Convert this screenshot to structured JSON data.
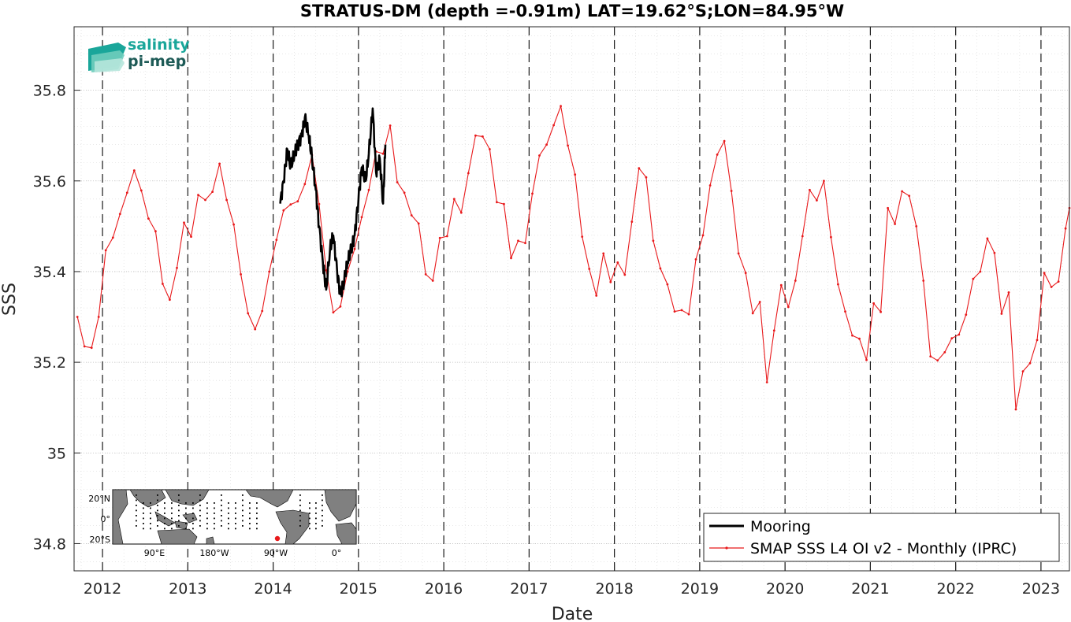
{
  "chart_data": {
    "type": "line",
    "title": "STRATUS-DM (depth =-0.91m) LAT=19.62°S;LON=84.95°W",
    "xlabel": "Date",
    "ylabel": "SSS",
    "xlim": [
      "2011-09",
      "2023-05"
    ],
    "ylim": [
      34.74,
      35.94
    ],
    "x_ticks": [
      "2012",
      "2013",
      "2014",
      "2015",
      "2016",
      "2017",
      "2018",
      "2019",
      "2020",
      "2021",
      "2022",
      "2023"
    ],
    "y_ticks": [
      34.8,
      35,
      35.2,
      35.4,
      35.6,
      35.8
    ],
    "y_tick_labels": [
      "34.8",
      "35",
      "35.2",
      "35.4",
      "35.6",
      "35.8"
    ],
    "grid": true,
    "year_markers": "dashed vertical lines at each year start",
    "legend_position": "bottom-right",
    "series": [
      {
        "name": "Mooring",
        "color": "#000000",
        "points": [
          [
            "2014-02-01",
            35.55
          ],
          [
            "2014-02-15",
            35.6
          ],
          [
            "2014-03-01",
            35.67
          ],
          [
            "2014-03-15",
            35.63
          ],
          [
            "2014-04-01",
            35.66
          ],
          [
            "2014-04-15",
            35.68
          ],
          [
            "2014-05-01",
            35.7
          ],
          [
            "2014-05-15",
            35.74
          ],
          [
            "2014-06-01",
            35.7
          ],
          [
            "2014-06-15",
            35.65
          ],
          [
            "2014-07-01",
            35.58
          ],
          [
            "2014-07-15",
            35.5
          ],
          [
            "2014-08-01",
            35.42
          ],
          [
            "2014-08-15",
            35.36
          ],
          [
            "2014-09-01",
            35.45
          ],
          [
            "2014-09-15",
            35.48
          ],
          [
            "2014-10-01",
            35.4
          ],
          [
            "2014-10-15",
            35.35
          ],
          [
            "2014-11-01",
            35.38
          ],
          [
            "2014-11-15",
            35.42
          ],
          [
            "2014-12-01",
            35.45
          ],
          [
            "2014-12-15",
            35.48
          ],
          [
            "2015-01-01",
            35.56
          ],
          [
            "2015-01-15",
            35.63
          ],
          [
            "2015-02-01",
            35.6
          ],
          [
            "2015-02-15",
            35.66
          ],
          [
            "2015-03-01",
            35.76
          ],
          [
            "2015-03-15",
            35.62
          ],
          [
            "2015-04-01",
            35.65
          ],
          [
            "2015-04-15",
            35.55
          ],
          [
            "2015-04-25",
            35.68
          ]
        ]
      },
      {
        "name": "SMAP SSS L4 OI v2 - Monthly (IPRC)",
        "color": "#e8191b",
        "points": [
          [
            "2011-09-15",
            35.3
          ],
          [
            "2011-10-15",
            35.235
          ],
          [
            "2011-11-15",
            35.232
          ],
          [
            "2011-12-15",
            35.3
          ],
          [
            "2012-01-15",
            35.447
          ],
          [
            "2012-02-15",
            35.475
          ],
          [
            "2012-03-15",
            35.527
          ],
          [
            "2012-04-15",
            35.574
          ],
          [
            "2012-05-15",
            35.623
          ],
          [
            "2012-06-15",
            35.579
          ],
          [
            "2012-07-15",
            35.517
          ],
          [
            "2012-08-15",
            35.489
          ],
          [
            "2012-09-15",
            35.373
          ],
          [
            "2012-10-15",
            35.338
          ],
          [
            "2012-11-15",
            35.408
          ],
          [
            "2012-12-15",
            35.508
          ],
          [
            "2013-01-15",
            35.477
          ],
          [
            "2013-02-15",
            35.569
          ],
          [
            "2013-03-15",
            35.558
          ],
          [
            "2013-04-15",
            35.576
          ],
          [
            "2013-05-15",
            35.638
          ],
          [
            "2013-06-15",
            35.558
          ],
          [
            "2013-07-15",
            35.504
          ],
          [
            "2013-08-15",
            35.394
          ],
          [
            "2013-09-15",
            35.308
          ],
          [
            "2013-10-15",
            35.273
          ],
          [
            "2013-11-15",
            35.313
          ],
          [
            "2013-12-15",
            35.4
          ],
          [
            "2014-01-15",
            35.47
          ],
          [
            "2014-02-15",
            35.535
          ],
          [
            "2014-03-15",
            35.548
          ],
          [
            "2014-04-15",
            35.555
          ],
          [
            "2014-05-15",
            35.593
          ],
          [
            "2014-06-15",
            35.657
          ],
          [
            "2014-07-15",
            35.549
          ],
          [
            "2014-08-15",
            35.403
          ],
          [
            "2014-09-15",
            35.31
          ],
          [
            "2014-10-15",
            35.323
          ],
          [
            "2014-11-15",
            35.4
          ],
          [
            "2014-12-15",
            35.45
          ],
          [
            "2015-01-15",
            35.52
          ],
          [
            "2015-02-15",
            35.58
          ],
          [
            "2015-03-15",
            35.665
          ],
          [
            "2015-04-15",
            35.66
          ],
          [
            "2015-05-15",
            35.722
          ],
          [
            "2015-06-15",
            35.597
          ],
          [
            "2015-07-15",
            35.574
          ],
          [
            "2015-08-15",
            35.524
          ],
          [
            "2015-09-15",
            35.506
          ],
          [
            "2015-10-15",
            35.394
          ],
          [
            "2015-11-15",
            35.38
          ],
          [
            "2015-12-15",
            35.474
          ],
          [
            "2016-01-15",
            35.478
          ],
          [
            "2016-02-15",
            35.56
          ],
          [
            "2016-03-15",
            35.53
          ],
          [
            "2016-04-15",
            35.617
          ],
          [
            "2016-05-15",
            35.7
          ],
          [
            "2016-06-15",
            35.698
          ],
          [
            "2016-07-15",
            35.67
          ],
          [
            "2016-08-15",
            35.553
          ],
          [
            "2016-09-15",
            35.549
          ],
          [
            "2016-10-15",
            35.43
          ],
          [
            "2016-11-15",
            35.468
          ],
          [
            "2016-12-15",
            35.463
          ],
          [
            "2017-01-15",
            35.572
          ],
          [
            "2017-02-15",
            35.656
          ],
          [
            "2017-03-15",
            35.68
          ],
          [
            "2017-04-15",
            35.723
          ],
          [
            "2017-05-15",
            35.765
          ],
          [
            "2017-06-15",
            35.678
          ],
          [
            "2017-07-15",
            35.614
          ],
          [
            "2017-08-15",
            35.477
          ],
          [
            "2017-09-15",
            35.406
          ],
          [
            "2017-10-15",
            35.347
          ],
          [
            "2017-11-15",
            35.44
          ],
          [
            "2017-12-15",
            35.377
          ],
          [
            "2018-01-15",
            35.42
          ],
          [
            "2018-02-15",
            35.393
          ],
          [
            "2018-03-15",
            35.51
          ],
          [
            "2018-04-15",
            35.628
          ],
          [
            "2018-05-15",
            35.608
          ],
          [
            "2018-06-15",
            35.468
          ],
          [
            "2018-07-15",
            35.407
          ],
          [
            "2018-08-15",
            35.372
          ],
          [
            "2018-09-15",
            35.312
          ],
          [
            "2018-10-15",
            35.315
          ],
          [
            "2018-11-15",
            35.306
          ],
          [
            "2018-12-15",
            35.427
          ],
          [
            "2019-01-15",
            35.48
          ],
          [
            "2019-02-15",
            35.59
          ],
          [
            "2019-03-15",
            35.658
          ],
          [
            "2019-04-15",
            35.688
          ],
          [
            "2019-05-15",
            35.578
          ],
          [
            "2019-06-15",
            35.44
          ],
          [
            "2019-07-15",
            35.397
          ],
          [
            "2019-08-15",
            35.308
          ],
          [
            "2019-09-15",
            35.333
          ],
          [
            "2019-10-15",
            35.156
          ],
          [
            "2019-11-15",
            35.27
          ],
          [
            "2019-12-15",
            35.37
          ],
          [
            "2020-01-15",
            35.322
          ],
          [
            "2020-02-15",
            35.38
          ],
          [
            "2020-03-15",
            35.478
          ],
          [
            "2020-04-15",
            35.58
          ],
          [
            "2020-05-15",
            35.557
          ],
          [
            "2020-06-15",
            35.6
          ],
          [
            "2020-07-15",
            35.476
          ],
          [
            "2020-08-15",
            35.372
          ],
          [
            "2020-09-15",
            35.312
          ],
          [
            "2020-10-15",
            35.259
          ],
          [
            "2020-11-15",
            35.252
          ],
          [
            "2020-12-15",
            35.205
          ],
          [
            "2021-01-15",
            35.33
          ],
          [
            "2021-02-15",
            35.311
          ],
          [
            "2021-03-15",
            35.54
          ],
          [
            "2021-04-15",
            35.505
          ],
          [
            "2021-05-15",
            35.577
          ],
          [
            "2021-06-15",
            35.567
          ],
          [
            "2021-07-15",
            35.5
          ],
          [
            "2021-08-15",
            35.38
          ],
          [
            "2021-09-15",
            35.213
          ],
          [
            "2021-10-15",
            35.204
          ],
          [
            "2021-11-15",
            35.222
          ],
          [
            "2021-12-15",
            35.253
          ],
          [
            "2022-01-15",
            35.261
          ],
          [
            "2022-02-15",
            35.305
          ],
          [
            "2022-03-15",
            35.384
          ],
          [
            "2022-04-15",
            35.4
          ],
          [
            "2022-05-15",
            35.473
          ],
          [
            "2022-06-15",
            35.441
          ],
          [
            "2022-07-15",
            35.307
          ],
          [
            "2022-08-15",
            35.354
          ],
          [
            "2022-09-15",
            35.096
          ],
          [
            "2022-10-15",
            35.18
          ],
          [
            "2022-11-15",
            35.198
          ],
          [
            "2022-12-15",
            35.249
          ],
          [
            "2023-01-15",
            35.397
          ],
          [
            "2023-02-15",
            35.366
          ],
          [
            "2023-03-15",
            35.378
          ],
          [
            "2023-04-15",
            35.495
          ],
          [
            "2023-05-01",
            35.54
          ]
        ]
      }
    ],
    "inset_map": {
      "lat_ticks": [
        "20°N",
        "0°",
        "20°S"
      ],
      "lon_ticks": [
        "90°E",
        "180°W",
        "90°W",
        "0°"
      ],
      "marker_color": "#e8191b"
    }
  },
  "logo": {
    "line1": "salinity",
    "line2": "pi-mep"
  },
  "colors": {
    "mooring": "#000000",
    "smap": "#e8191b",
    "logo_teal": "#1aa69a",
    "logo_dark": "#1d5a56"
  }
}
